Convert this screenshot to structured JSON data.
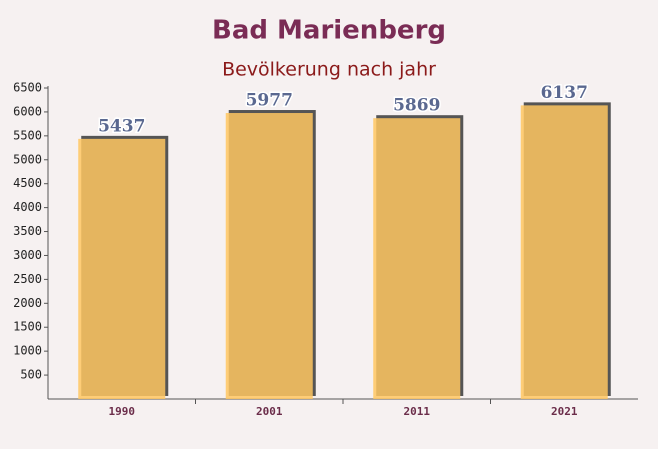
{
  "chart_data": {
    "type": "bar",
    "title": "Bad Marienberg",
    "subtitle": "Bevölkerung nach jahr",
    "categories": [
      "1990",
      "2001",
      "2011",
      "2021"
    ],
    "values": [
      5437,
      5977,
      5869,
      6137
    ],
    "color": "#ffc761",
    "ylim": [
      0,
      6500
    ],
    "yticks": [
      500,
      1000,
      1500,
      2000,
      2500,
      3000,
      3500,
      4000,
      4500,
      5000,
      5500,
      6000,
      6500
    ]
  }
}
